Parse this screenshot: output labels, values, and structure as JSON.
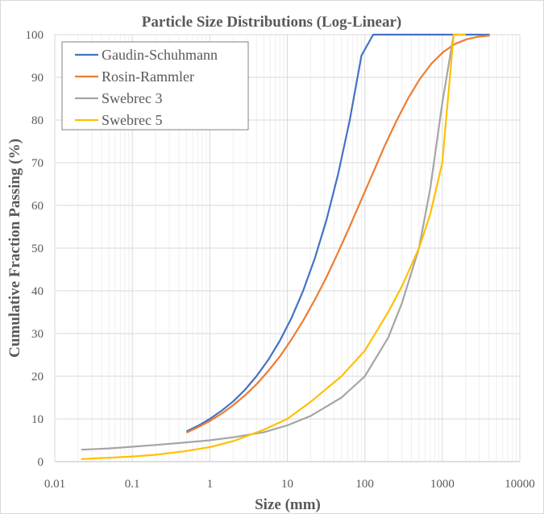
{
  "chart_data": {
    "type": "line",
    "title": "Particle Size Distributions (Log-Linear)",
    "xlabel": "Size (mm)",
    "ylabel": "Cumulative Fraction Passing (%)",
    "xscale": "log",
    "xlim": [
      0.01,
      10000
    ],
    "ylim": [
      0,
      100
    ],
    "xticks": [
      "0.01",
      "0.1",
      "1",
      "10",
      "100",
      "1000",
      "10000"
    ],
    "yticks": [
      "0",
      "10",
      "20",
      "30",
      "40",
      "50",
      "60",
      "70",
      "80",
      "90",
      "100"
    ],
    "grid": true,
    "legend": "top-left",
    "series": [
      {
        "name": "Gaudin-Schuhmann",
        "color": "#4472C4",
        "x": [
          0.5,
          0.707,
          1,
          1.414,
          2,
          2.828,
          4,
          5.657,
          8,
          11.31,
          16,
          22.63,
          32,
          45.25,
          64,
          90.51,
          128,
          181,
          256,
          362,
          512,
          724,
          1024,
          1448,
          2048,
          2896,
          4096
        ],
        "y": [
          7.07,
          8.41,
          10,
          11.9,
          14.1,
          16.8,
          20,
          23.8,
          28.3,
          33.6,
          40,
          47.6,
          56.6,
          67.3,
          80,
          95.1,
          100,
          100,
          100,
          100,
          100,
          100,
          100,
          100,
          100,
          100,
          100
        ]
      },
      {
        "name": "Rosin-Rammler",
        "color": "#ED7D31",
        "x": [
          0.5,
          0.707,
          1,
          1.414,
          2,
          2.828,
          4,
          5.657,
          8,
          11.31,
          16,
          22.63,
          32,
          45.25,
          64,
          90.51,
          128,
          181,
          256,
          362,
          512,
          724,
          1024,
          1448,
          2048,
          2896,
          4096
        ],
        "y": [
          6.8,
          8.1,
          9.5,
          11.2,
          13.2,
          15.5,
          18.1,
          21.2,
          24.6,
          28.6,
          33.0,
          37.9,
          43.2,
          49.0,
          55.1,
          61.4,
          67.7,
          74.0,
          79.8,
          85.1,
          89.6,
          93.2,
          95.9,
          97.8,
          98.9,
          99.5,
          99.8
        ]
      },
      {
        "name": "Swebrec 3",
        "color": "#A5A5A5",
        "x": [
          0.022,
          0.05,
          0.1,
          0.2,
          0.5,
          1,
          2,
          5,
          10,
          20,
          50,
          100,
          200,
          300,
          500,
          700,
          1000,
          1400
        ],
        "y": [
          2.8,
          3.1,
          3.5,
          3.9,
          4.5,
          5.0,
          5.7,
          6.9,
          8.5,
          10.7,
          15,
          20,
          29,
          37,
          50,
          64,
          84,
          100
        ]
      },
      {
        "name": "Swebrec 5",
        "color": "#FFC000",
        "x": [
          0.022,
          0.05,
          0.1,
          0.2,
          0.5,
          1,
          2,
          5,
          10,
          20,
          50,
          100,
          200,
          300,
          500,
          700,
          1000,
          1400,
          2000
        ],
        "y": [
          0.6,
          0.9,
          1.2,
          1.6,
          2.5,
          3.4,
          4.8,
          7.5,
          10,
          14,
          20,
          26,
          35,
          41,
          50,
          58,
          70,
          100,
          100
        ]
      }
    ]
  }
}
